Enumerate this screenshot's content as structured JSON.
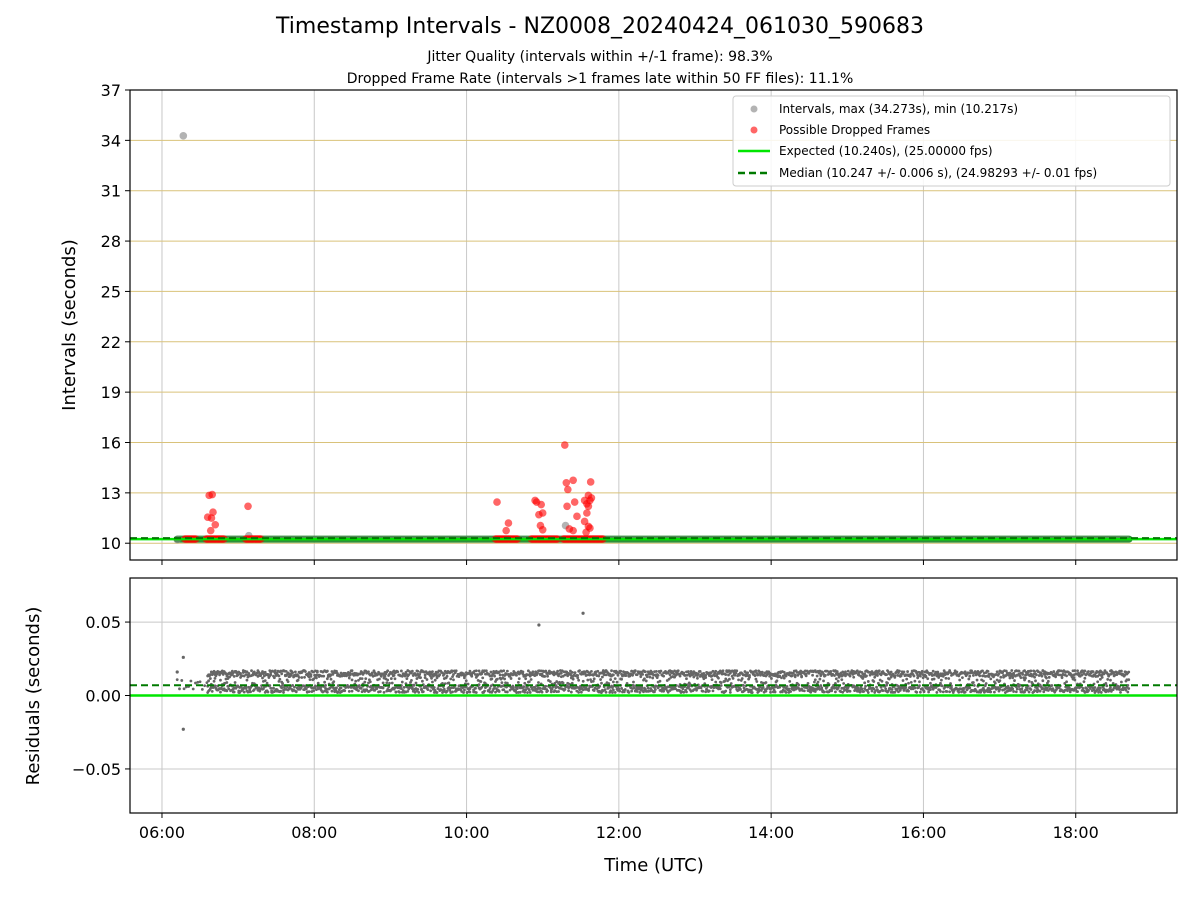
{
  "title": "Timestamp Intervals - NZ0008_20240424_061030_590683",
  "subtitle_1": "Jitter Quality (intervals within +/-1 frame): 98.3%",
  "subtitle_2": "Dropped Frame Rate (intervals >1 frames late within 50 FF files): 11.1%",
  "colors": {
    "intervals": "#808080",
    "dropped": "#ff0000",
    "expected": "#00e600",
    "median": "#007a00",
    "residuals": "#666666",
    "gold_grid": "#d9c27a",
    "grid": "#c8c8c8"
  },
  "chart_data": [
    {
      "type": "scatter",
      "panel": "top",
      "ylabel": "Intervals (seconds)",
      "xlabel": "",
      "xlim_hours": [
        5.58,
        19.33
      ],
      "ylim": [
        9,
        37
      ],
      "yticks": [
        10,
        13,
        16,
        19,
        22,
        25,
        28,
        31,
        34,
        37
      ],
      "xticks": [
        6,
        8,
        10,
        12,
        14,
        16,
        18
      ],
      "grid": true,
      "legend_position": "top-right",
      "legend": [
        "Intervals, max (34.273s), min (10.217s)",
        "Possible Dropped Frames",
        "Expected (10.240s), (25.00000 fps)",
        "Median (10.247 +/- 0.006 s), (24.98293 +/- 0.01 fps)"
      ],
      "series": [
        {
          "name": "Intervals, max (34.273s), min (10.217s)",
          "points_time_hours_value_seconds": [
            [
              6.28,
              34.27
            ],
            [
              7.14,
              10.45
            ],
            [
              11.3,
              11.05
            ],
            [
              6.2,
              10.22
            ]
          ],
          "dense_band": {
            "x_from_hours": 6.2,
            "x_to_hours": 18.7,
            "y_from": 10.22,
            "y_to": 10.27
          }
        },
        {
          "name": "Possible Dropped Frames",
          "points_time_hours_value_seconds": [
            [
              6.62,
              12.85
            ],
            [
              6.66,
              12.9
            ],
            [
              6.6,
              11.55
            ],
            [
              6.65,
              11.5
            ],
            [
              6.67,
              11.85
            ],
            [
              6.7,
              11.1
            ],
            [
              6.64,
              10.75
            ],
            [
              7.13,
              12.2
            ],
            [
              10.4,
              12.45
            ],
            [
              10.52,
              10.75
            ],
            [
              10.55,
              11.2
            ],
            [
              10.9,
              12.55
            ],
            [
              10.92,
              12.45
            ],
            [
              10.98,
              12.3
            ],
            [
              10.95,
              11.7
            ],
            [
              11.0,
              11.8
            ],
            [
              10.97,
              11.05
            ],
            [
              11.0,
              10.8
            ],
            [
              11.29,
              15.85
            ],
            [
              11.31,
              13.6
            ],
            [
              11.33,
              13.2
            ],
            [
              11.4,
              13.75
            ],
            [
              11.32,
              12.2
            ],
            [
              11.42,
              12.45
            ],
            [
              11.45,
              11.6
            ],
            [
              11.35,
              10.85
            ],
            [
              11.4,
              10.75
            ],
            [
              11.55,
              12.55
            ],
            [
              11.58,
              12.35
            ],
            [
              11.6,
              12.85
            ],
            [
              11.63,
              13.65
            ],
            [
              11.62,
              12.55
            ],
            [
              11.6,
              12.2
            ],
            [
              11.58,
              11.8
            ],
            [
              11.55,
              11.3
            ],
            [
              11.6,
              11.0
            ],
            [
              11.57,
              10.65
            ],
            [
              11.62,
              10.9
            ],
            [
              11.64,
              12.7
            ]
          ],
          "baseline_runs_hours": [
            [
              6.3,
              6.45
            ],
            [
              6.58,
              6.82
            ],
            [
              7.1,
              7.3
            ],
            [
              10.38,
              10.68
            ],
            [
              10.85,
              11.2
            ],
            [
              11.27,
              11.8
            ]
          ]
        },
        {
          "name": "Expected (10.240s), (25.00000 fps)",
          "y": 10.24
        },
        {
          "name": "Median (10.247 +/- 0.006 s), (24.98293 +/- 0.01 fps)",
          "y": 10.247
        }
      ]
    },
    {
      "type": "scatter",
      "panel": "bottom",
      "ylabel": "Residuals (seconds)",
      "xlabel": "Time (UTC)",
      "xlim_hours": [
        5.58,
        19.33
      ],
      "ylim": [
        -0.08,
        0.08
      ],
      "yticks": [
        0.05,
        0.0,
        -0.05
      ],
      "ytick_labels": [
        "0.05",
        "0.00",
        "−0.05"
      ],
      "xticks": [
        6,
        8,
        10,
        12,
        14,
        16,
        18
      ],
      "xtick_labels": [
        "06:00",
        "08:00",
        "10:00",
        "12:00",
        "14:00",
        "16:00",
        "18:00"
      ],
      "grid": true,
      "series": [
        {
          "name": "",
          "points_time_hours_value_seconds": [
            [
              6.28,
              0.026
            ],
            [
              6.28,
              -0.023
            ],
            [
              6.2,
              0.016
            ],
            [
              10.95,
              0.048
            ],
            [
              11.53,
              0.056
            ]
          ],
          "dense_band": {
            "x_from_hours": 6.2,
            "x_to_hours": 18.7,
            "y_from": 0.002,
            "y_to": 0.017
          }
        },
        {
          "name": "",
          "y": 0.0
        },
        {
          "name": "",
          "y": 0.007
        }
      ]
    }
  ]
}
